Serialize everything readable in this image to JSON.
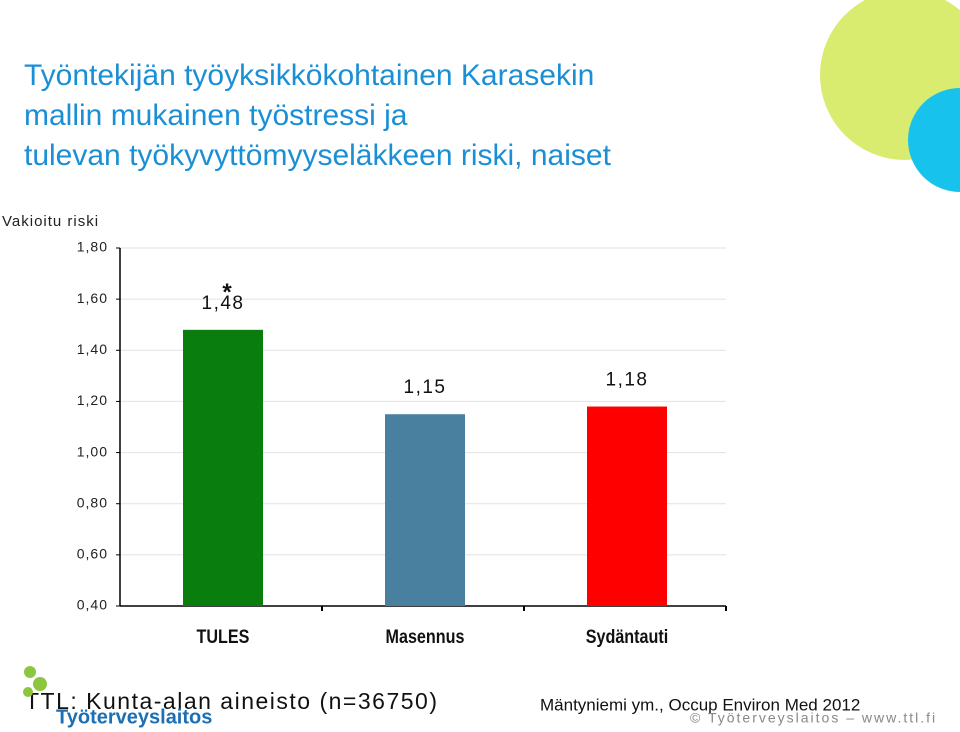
{
  "chart_data": {
    "type": "bar",
    "title": "Työntekijän työyksikkökohtainen Karasekin mallin mukainen työstressi ja tulevan työkyvyttömyyseläkkeen riski, naiset",
    "y_label": "Vakioitu riski",
    "categories": [
      "TULES",
      "Masennus",
      "Sydäntauti"
    ],
    "values": [
      1.48,
      1.15,
      1.18
    ],
    "value_labels": [
      "1,48",
      "1,15",
      "1,18"
    ],
    "colors": [
      "#0a7d0f",
      "#4a809f",
      "#ff0000"
    ],
    "annotation": "*",
    "ylim": [
      0.4,
      1.8
    ],
    "yticks": [
      {
        "value": 0.4,
        "label": "0,40"
      },
      {
        "value": 0.6,
        "label": "0,60"
      },
      {
        "value": 0.8,
        "label": "0,80"
      },
      {
        "value": 1.0,
        "label": "1,00"
      },
      {
        "value": 1.2,
        "label": "1,20"
      },
      {
        "value": 1.4,
        "label": "1,40"
      },
      {
        "value": 1.6,
        "label": "1,60"
      },
      {
        "value": 1.8,
        "label": "1,80"
      }
    ],
    "grid": true
  },
  "footer": {
    "source": "TTL: Kunta-alan aineisto (n=36750)",
    "reference": "Mäntyniemi ym., Occup Environ Med 2012",
    "copyright": "© Työterveyslaitos – www.ttl.fi",
    "logo": "Työterveyslaitos"
  }
}
